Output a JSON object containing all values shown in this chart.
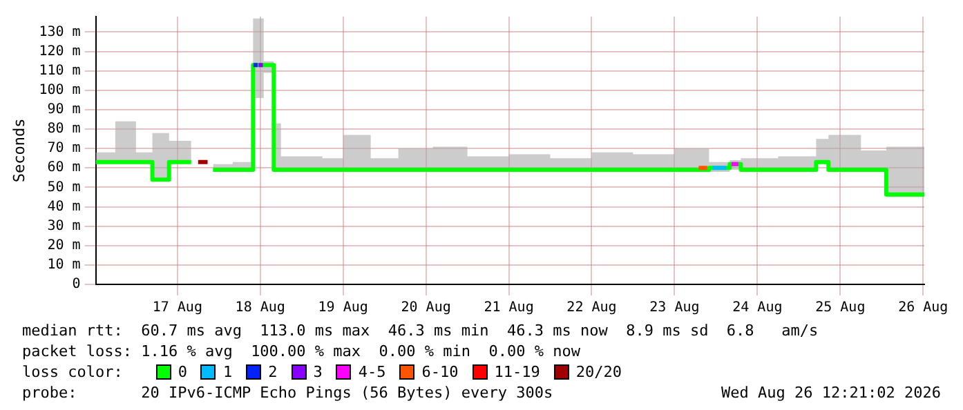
{
  "chart_data": {
    "type": "step",
    "ylabel": "Seconds",
    "legend_title": "loss color:",
    "legend": "bottom",
    "grid": true,
    "marker": "none",
    "xlim": [
      "2026-08-16T12:21",
      "2026-08-26T12:21"
    ],
    "xticks": [
      {
        "value": "2026-08-17T12:00",
        "label": "17 Aug"
      },
      {
        "value": "2026-08-18T12:00",
        "label": "18 Aug"
      },
      {
        "value": "2026-08-19T12:00",
        "label": "19 Aug"
      },
      {
        "value": "2026-08-20T12:00",
        "label": "20 Aug"
      },
      {
        "value": "2026-08-21T12:00",
        "label": "21 Aug"
      },
      {
        "value": "2026-08-22T12:00",
        "label": "22 Aug"
      },
      {
        "value": "2026-08-23T12:00",
        "label": "23 Aug"
      },
      {
        "value": "2026-08-24T12:00",
        "label": "24 Aug"
      },
      {
        "value": "2026-08-25T12:00",
        "label": "25 Aug"
      },
      {
        "value": "2026-08-26T12:00",
        "label": "26 Aug"
      }
    ],
    "ylim": [
      0,
      138
    ],
    "yticks": [
      0,
      {
        "value": 10,
        "label": "10 m"
      },
      {
        "value": 20,
        "label": "20 m"
      },
      {
        "value": 30,
        "label": "30 m"
      },
      {
        "value": 40,
        "label": "40 m"
      },
      {
        "value": 50,
        "label": "50 m"
      },
      {
        "value": 60,
        "label": "60 m"
      },
      {
        "value": 70,
        "label": "70 m"
      },
      {
        "value": 80,
        "label": "80 m"
      },
      {
        "value": 90,
        "label": "90 m"
      },
      {
        "value": 100,
        "label": "100 m"
      },
      {
        "value": 110,
        "label": "110 m"
      },
      {
        "value": 120,
        "label": "120 m"
      },
      {
        "value": 130,
        "label": "130 m"
      }
    ],
    "x": [
      "2026-08-16T12:21",
      "2026-08-16T18:00",
      "2026-08-17T00:00",
      "2026-08-17T04:45",
      "2026-08-17T09:35",
      "2026-08-17T16:00",
      "2026-08-17T20:45",
      "2026-08-17T22:20",
      "2026-08-18T04:00",
      "2026-08-18T09:55",
      "2026-08-18T13:00",
      "2026-08-18T15:55",
      "2026-08-18T18:00",
      "2026-08-19T06:00",
      "2026-08-19T12:00",
      "2026-08-19T20:00",
      "2026-08-20T04:00",
      "2026-08-20T14:00",
      "2026-08-21T00:00",
      "2026-08-21T12:00",
      "2026-08-22T00:00",
      "2026-08-22T12:00",
      "2026-08-23T00:00",
      "2026-08-23T12:00",
      "2026-08-23T22:00",
      "2026-08-24T04:00",
      "2026-08-24T07:12",
      "2026-08-24T18:00",
      "2026-08-25T05:00",
      "2026-08-25T08:36",
      "2026-08-25T18:00",
      "2026-08-26T01:20",
      "2026-08-26T12:21"
    ],
    "series": [
      {
        "name": "0",
        "color": "#00ff00",
        "values": [
          63,
          63,
          63,
          54,
          63,
          63,
          null,
          59,
          59,
          113,
          113,
          59,
          59,
          59,
          59,
          59,
          59,
          59,
          59,
          59,
          59,
          59,
          59,
          59,
          60,
          62,
          59,
          59,
          63,
          59,
          59,
          46.3,
          46.3
        ],
        "lower": [
          62,
          62,
          62,
          53,
          62,
          62,
          null,
          58,
          58,
          96,
          109,
          58,
          58,
          58,
          58,
          58,
          58,
          58,
          58,
          58,
          58,
          58,
          58,
          58,
          58,
          59,
          58,
          58,
          62,
          58,
          58,
          45,
          45
        ],
        "upper": [
          68,
          84,
          68,
          78,
          74,
          66,
          null,
          62,
          63,
          137,
          115,
          83,
          66,
          65,
          77,
          65,
          70,
          71,
          66,
          67,
          65,
          68,
          67,
          70,
          63,
          64,
          65,
          66,
          75,
          77,
          69,
          71,
          50
        ]
      },
      {
        "name": "1",
        "color": "#00bbff",
        "x": [
          "2026-08-23T23:00",
          "2026-08-24T03:00"
        ],
        "values": [
          60,
          60
        ]
      },
      {
        "name": "2",
        "color": "#0022ff",
        "x": [
          "2026-08-18T10:00",
          "2026-08-18T11:15"
        ],
        "values": [
          113,
          113
        ]
      },
      {
        "name": "3",
        "color": "#8a00ff",
        "x": [
          "2026-08-18T11:30",
          "2026-08-18T12:45"
        ],
        "values": [
          113,
          113
        ]
      },
      {
        "name": "4-5",
        "color": "#ff00ff",
        "x": [
          "2026-08-24T04:30",
          "2026-08-24T06:30"
        ],
        "values": [
          62,
          62
        ]
      },
      {
        "name": "6-10",
        "color": "#ff5500",
        "x": [
          "2026-08-23T19:00",
          "2026-08-23T21:30"
        ],
        "values": [
          60,
          60
        ]
      },
      {
        "name": "11-19",
        "color": "#ff0000",
        "values": [
          null,
          null,
          null,
          null,
          null,
          null,
          null,
          null,
          null,
          null,
          null,
          null,
          null,
          null,
          null,
          null,
          null,
          null,
          null,
          null,
          null,
          null,
          null,
          null,
          null,
          null,
          null,
          null,
          null,
          null,
          null,
          null,
          null
        ]
      },
      {
        "name": "20/20",
        "color": "#a10000",
        "x": [
          "2026-08-17T18:00",
          "2026-08-17T20:45"
        ],
        "values": [
          63,
          63
        ]
      }
    ],
    "annotations": [
      "median rtt:  60.7 ms avg  113.0 ms max  46.3 ms min  46.3 ms now  8.9 ms sd  6.8   am/s",
      "packet loss: 1.16 % avg  100.00 % max  0.00 % min  0.00 % now",
      "probe:       20 IPv6-ICMP Echo Pings (56 Bytes) every 300s",
      "Wed Aug 26 12:21:02 2026"
    ]
  }
}
